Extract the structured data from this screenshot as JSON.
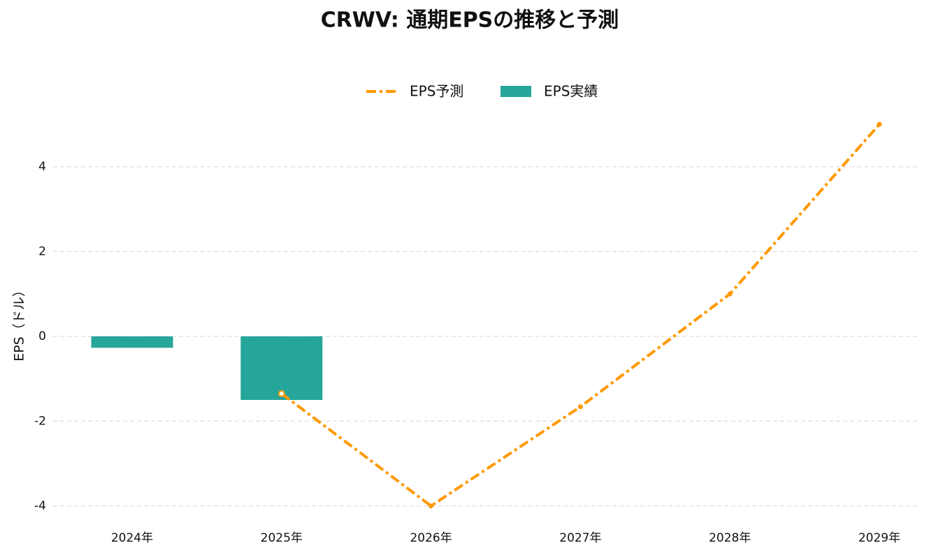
{
  "chart_data": {
    "type": "bar",
    "title": "CRWV: 通期EPSの推移と予測",
    "y_label": "EPS（ドル）",
    "categories": [
      "2024年",
      "2025年",
      "2026年",
      "2027年",
      "2028年",
      "2029年"
    ],
    "series": [
      {
        "name": "EPS予測",
        "type": "line",
        "color": "#ff9800",
        "values": [
          null,
          -1.35,
          -4.0,
          -1.66,
          1.0,
          5.0
        ]
      },
      {
        "name": "EPS実績",
        "type": "bar",
        "color": "#26a69a",
        "values": [
          -0.27,
          -1.5,
          null,
          null,
          null,
          null
        ]
      }
    ],
    "ylim": [
      -4.2,
      5.2
    ],
    "yticks": [
      -4,
      -2,
      0,
      2,
      4
    ],
    "grid": true,
    "legend": "top"
  }
}
